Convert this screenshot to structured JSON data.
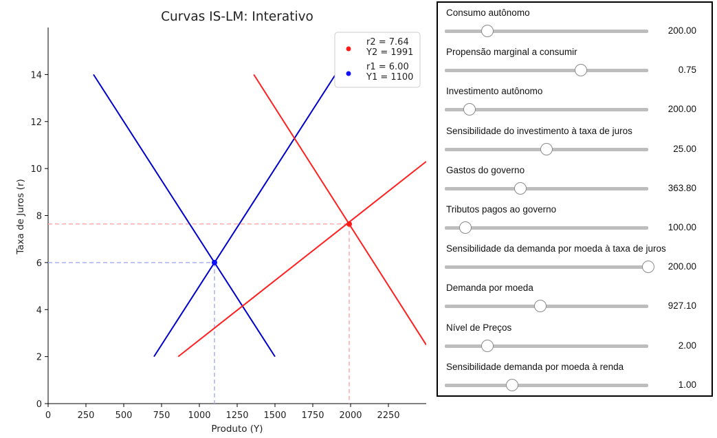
{
  "chart_data": {
    "type": "line",
    "title": "Curvas IS-LM: Interativo",
    "xlabel": "Produto (Y)",
    "ylabel": "Taxa de Juros (r)",
    "xlim": [
      0,
      2500
    ],
    "ylim": [
      0,
      16
    ],
    "xticks": [
      0,
      250,
      500,
      750,
      1000,
      1250,
      1500,
      1750,
      2000,
      2250
    ],
    "yticks": [
      0,
      2,
      4,
      6,
      8,
      10,
      12,
      14
    ],
    "grid": false,
    "legend_position": "top-right",
    "series": [
      {
        "kind": "IS",
        "color": "#0000cc",
        "x": [
          300,
          1500
        ],
        "y": [
          14,
          2
        ]
      },
      {
        "kind": "LM",
        "color": "#0000cc",
        "x": [
          700,
          1900
        ],
        "y": [
          2,
          14
        ]
      },
      {
        "kind": "IS",
        "color": "#ff2020",
        "x": [
          1360,
          2500
        ],
        "y": [
          14,
          2.5
        ]
      },
      {
        "kind": "LM",
        "color": "#ff2020",
        "x": [
          860,
          2500
        ],
        "y": [
          2,
          10.3
        ]
      }
    ],
    "equilibria": [
      {
        "label": "r2 = 7.64\nY2 = 1991",
        "color": "red",
        "Y": 1991,
        "r": 7.64
      },
      {
        "label": "r1 = 6.00\nY1 = 1100",
        "color": "blue",
        "Y": 1100,
        "r": 6.0
      }
    ]
  },
  "controls": {
    "sliders": [
      {
        "label": "Consumo autônomo",
        "value": "200.00",
        "position": 0.21
      },
      {
        "label": "Propensão marginal a consumir",
        "value": "0.75",
        "position": 0.67
      },
      {
        "label": "Investimento autônomo",
        "value": "200.00",
        "position": 0.12
      },
      {
        "label": "Sensibilidade do investimento à taxa de juros",
        "value": "25.00",
        "position": 0.5
      },
      {
        "label": "Gastos do governo",
        "value": "363.80",
        "position": 0.37
      },
      {
        "label": "Tributos pagos ao governo",
        "value": "100.00",
        "position": 0.1
      },
      {
        "label": "Sensibilidade da demanda por moeda à taxa de juros",
        "value": "200.00",
        "position": 1.0
      },
      {
        "label": "Demanda por moeda",
        "value": "927.10",
        "position": 0.47
      },
      {
        "label": "Nível de Preços",
        "value": "2.00",
        "position": 0.21
      },
      {
        "label": "Sensibilidade demanda por moeda à renda",
        "value": "1.00",
        "position": 0.33
      }
    ]
  }
}
